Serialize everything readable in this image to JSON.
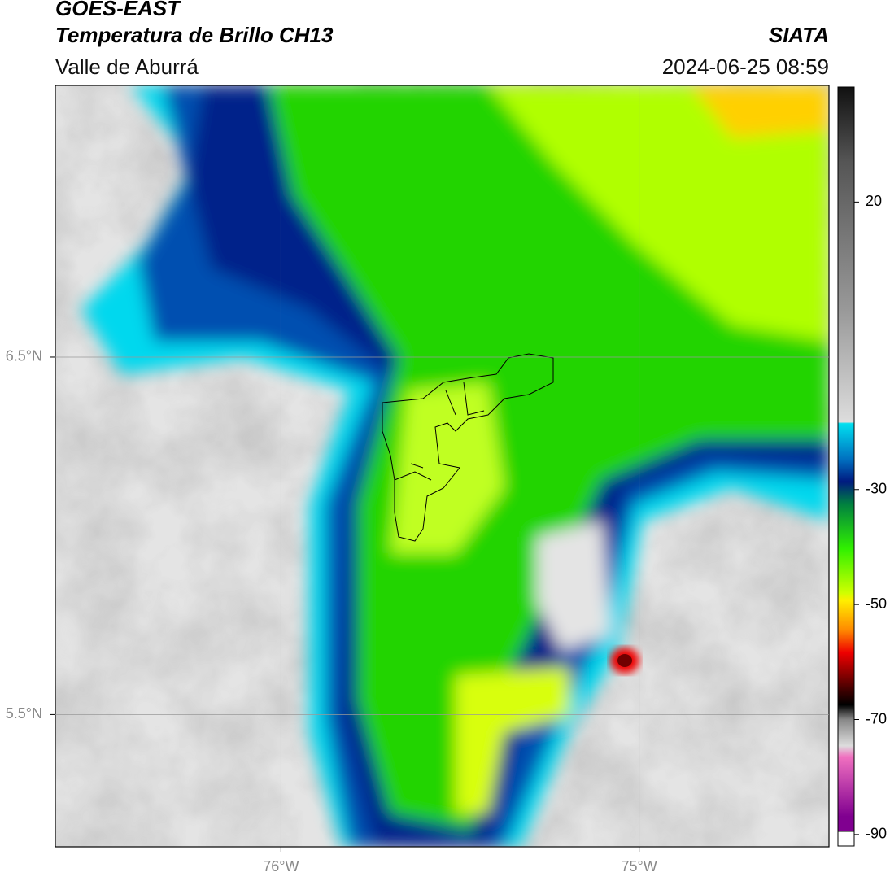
{
  "header": {
    "title": "GOES-EAST",
    "subtitle": "Temperatura de Brillo CH13",
    "region": "Valle de Aburrá",
    "source": "SIATA",
    "datetime": "2024-06-25 08:59"
  },
  "map": {
    "xlim": [
      -76.63,
      -74.47
    ],
    "ylim": [
      5.13,
      7.26
    ],
    "xticks": [
      {
        "value": -76,
        "label": "76°W"
      },
      {
        "value": -75,
        "label": "75°W"
      }
    ],
    "yticks": [
      {
        "value": 6.5,
        "label": "6.5°N"
      },
      {
        "value": 5.5,
        "label": "5.5°N"
      }
    ],
    "grid": true
  },
  "colorbar": {
    "range": [
      -92,
      40
    ],
    "ticks": [
      20,
      -30,
      -50,
      -70,
      -90
    ]
  }
}
